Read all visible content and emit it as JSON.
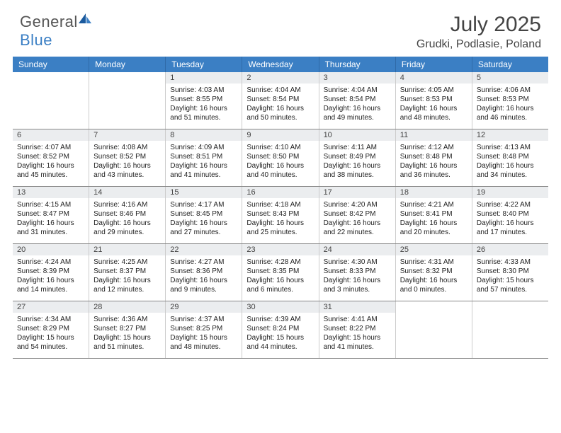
{
  "brand": {
    "name1": "General",
    "name2": "Blue"
  },
  "title": "July 2025",
  "location": "Grudki, Podlasie, Poland",
  "colors": {
    "header_bg": "#3b7fc4",
    "header_text": "#ffffff",
    "daynum_bg": "#ebedef",
    "row_border": "#888888",
    "cell_border": "#cccccc",
    "text": "#222222",
    "title_text": "#444444"
  },
  "day_names": [
    "Sunday",
    "Monday",
    "Tuesday",
    "Wednesday",
    "Thursday",
    "Friday",
    "Saturday"
  ],
  "weeks": [
    [
      null,
      null,
      {
        "n": "1",
        "sr": "Sunrise: 4:03 AM",
        "ss": "Sunset: 8:55 PM",
        "dl": "Daylight: 16 hours and 51 minutes."
      },
      {
        "n": "2",
        "sr": "Sunrise: 4:04 AM",
        "ss": "Sunset: 8:54 PM",
        "dl": "Daylight: 16 hours and 50 minutes."
      },
      {
        "n": "3",
        "sr": "Sunrise: 4:04 AM",
        "ss": "Sunset: 8:54 PM",
        "dl": "Daylight: 16 hours and 49 minutes."
      },
      {
        "n": "4",
        "sr": "Sunrise: 4:05 AM",
        "ss": "Sunset: 8:53 PM",
        "dl": "Daylight: 16 hours and 48 minutes."
      },
      {
        "n": "5",
        "sr": "Sunrise: 4:06 AM",
        "ss": "Sunset: 8:53 PM",
        "dl": "Daylight: 16 hours and 46 minutes."
      }
    ],
    [
      {
        "n": "6",
        "sr": "Sunrise: 4:07 AM",
        "ss": "Sunset: 8:52 PM",
        "dl": "Daylight: 16 hours and 45 minutes."
      },
      {
        "n": "7",
        "sr": "Sunrise: 4:08 AM",
        "ss": "Sunset: 8:52 PM",
        "dl": "Daylight: 16 hours and 43 minutes."
      },
      {
        "n": "8",
        "sr": "Sunrise: 4:09 AM",
        "ss": "Sunset: 8:51 PM",
        "dl": "Daylight: 16 hours and 41 minutes."
      },
      {
        "n": "9",
        "sr": "Sunrise: 4:10 AM",
        "ss": "Sunset: 8:50 PM",
        "dl": "Daylight: 16 hours and 40 minutes."
      },
      {
        "n": "10",
        "sr": "Sunrise: 4:11 AM",
        "ss": "Sunset: 8:49 PM",
        "dl": "Daylight: 16 hours and 38 minutes."
      },
      {
        "n": "11",
        "sr": "Sunrise: 4:12 AM",
        "ss": "Sunset: 8:48 PM",
        "dl": "Daylight: 16 hours and 36 minutes."
      },
      {
        "n": "12",
        "sr": "Sunrise: 4:13 AM",
        "ss": "Sunset: 8:48 PM",
        "dl": "Daylight: 16 hours and 34 minutes."
      }
    ],
    [
      {
        "n": "13",
        "sr": "Sunrise: 4:15 AM",
        "ss": "Sunset: 8:47 PM",
        "dl": "Daylight: 16 hours and 31 minutes."
      },
      {
        "n": "14",
        "sr": "Sunrise: 4:16 AM",
        "ss": "Sunset: 8:46 PM",
        "dl": "Daylight: 16 hours and 29 minutes."
      },
      {
        "n": "15",
        "sr": "Sunrise: 4:17 AM",
        "ss": "Sunset: 8:45 PM",
        "dl": "Daylight: 16 hours and 27 minutes."
      },
      {
        "n": "16",
        "sr": "Sunrise: 4:18 AM",
        "ss": "Sunset: 8:43 PM",
        "dl": "Daylight: 16 hours and 25 minutes."
      },
      {
        "n": "17",
        "sr": "Sunrise: 4:20 AM",
        "ss": "Sunset: 8:42 PM",
        "dl": "Daylight: 16 hours and 22 minutes."
      },
      {
        "n": "18",
        "sr": "Sunrise: 4:21 AM",
        "ss": "Sunset: 8:41 PM",
        "dl": "Daylight: 16 hours and 20 minutes."
      },
      {
        "n": "19",
        "sr": "Sunrise: 4:22 AM",
        "ss": "Sunset: 8:40 PM",
        "dl": "Daylight: 16 hours and 17 minutes."
      }
    ],
    [
      {
        "n": "20",
        "sr": "Sunrise: 4:24 AM",
        "ss": "Sunset: 8:39 PM",
        "dl": "Daylight: 16 hours and 14 minutes."
      },
      {
        "n": "21",
        "sr": "Sunrise: 4:25 AM",
        "ss": "Sunset: 8:37 PM",
        "dl": "Daylight: 16 hours and 12 minutes."
      },
      {
        "n": "22",
        "sr": "Sunrise: 4:27 AM",
        "ss": "Sunset: 8:36 PM",
        "dl": "Daylight: 16 hours and 9 minutes."
      },
      {
        "n": "23",
        "sr": "Sunrise: 4:28 AM",
        "ss": "Sunset: 8:35 PM",
        "dl": "Daylight: 16 hours and 6 minutes."
      },
      {
        "n": "24",
        "sr": "Sunrise: 4:30 AM",
        "ss": "Sunset: 8:33 PM",
        "dl": "Daylight: 16 hours and 3 minutes."
      },
      {
        "n": "25",
        "sr": "Sunrise: 4:31 AM",
        "ss": "Sunset: 8:32 PM",
        "dl": "Daylight: 16 hours and 0 minutes."
      },
      {
        "n": "26",
        "sr": "Sunrise: 4:33 AM",
        "ss": "Sunset: 8:30 PM",
        "dl": "Daylight: 15 hours and 57 minutes."
      }
    ],
    [
      {
        "n": "27",
        "sr": "Sunrise: 4:34 AM",
        "ss": "Sunset: 8:29 PM",
        "dl": "Daylight: 15 hours and 54 minutes."
      },
      {
        "n": "28",
        "sr": "Sunrise: 4:36 AM",
        "ss": "Sunset: 8:27 PM",
        "dl": "Daylight: 15 hours and 51 minutes."
      },
      {
        "n": "29",
        "sr": "Sunrise: 4:37 AM",
        "ss": "Sunset: 8:25 PM",
        "dl": "Daylight: 15 hours and 48 minutes."
      },
      {
        "n": "30",
        "sr": "Sunrise: 4:39 AM",
        "ss": "Sunset: 8:24 PM",
        "dl": "Daylight: 15 hours and 44 minutes."
      },
      {
        "n": "31",
        "sr": "Sunrise: 4:41 AM",
        "ss": "Sunset: 8:22 PM",
        "dl": "Daylight: 15 hours and 41 minutes."
      },
      null,
      null
    ]
  ]
}
